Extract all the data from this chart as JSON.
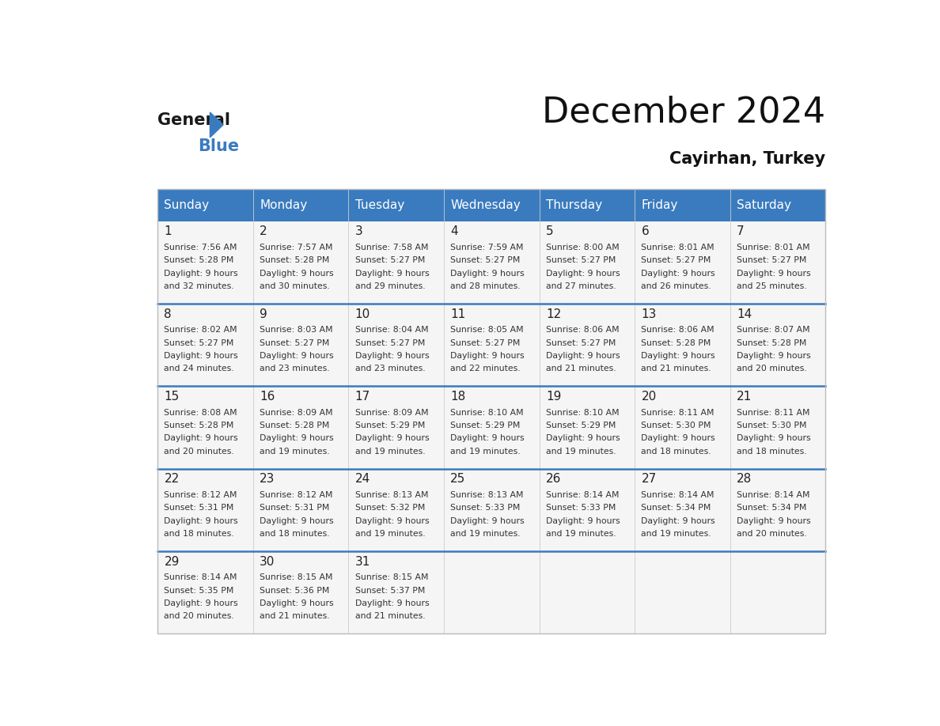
{
  "title": "December 2024",
  "subtitle": "Cayirhan, Turkey",
  "header_color": "#3a7bbf",
  "header_text_color": "#ffffff",
  "bg_color": "#ffffff",
  "cell_bg": "#f5f5f5",
  "day_headers": [
    "Sunday",
    "Monday",
    "Tuesday",
    "Wednesday",
    "Thursday",
    "Friday",
    "Saturday"
  ],
  "separator_color": "#3a7bbf",
  "days": [
    {
      "day": 1,
      "col": 0,
      "row": 0,
      "sunrise": "7:56 AM",
      "sunset": "5:28 PM",
      "daylight_hrs": 9,
      "daylight_min": 32
    },
    {
      "day": 2,
      "col": 1,
      "row": 0,
      "sunrise": "7:57 AM",
      "sunset": "5:28 PM",
      "daylight_hrs": 9,
      "daylight_min": 30
    },
    {
      "day": 3,
      "col": 2,
      "row": 0,
      "sunrise": "7:58 AM",
      "sunset": "5:27 PM",
      "daylight_hrs": 9,
      "daylight_min": 29
    },
    {
      "day": 4,
      "col": 3,
      "row": 0,
      "sunrise": "7:59 AM",
      "sunset": "5:27 PM",
      "daylight_hrs": 9,
      "daylight_min": 28
    },
    {
      "day": 5,
      "col": 4,
      "row": 0,
      "sunrise": "8:00 AM",
      "sunset": "5:27 PM",
      "daylight_hrs": 9,
      "daylight_min": 27
    },
    {
      "day": 6,
      "col": 5,
      "row": 0,
      "sunrise": "8:01 AM",
      "sunset": "5:27 PM",
      "daylight_hrs": 9,
      "daylight_min": 26
    },
    {
      "day": 7,
      "col": 6,
      "row": 0,
      "sunrise": "8:01 AM",
      "sunset": "5:27 PM",
      "daylight_hrs": 9,
      "daylight_min": 25
    },
    {
      "day": 8,
      "col": 0,
      "row": 1,
      "sunrise": "8:02 AM",
      "sunset": "5:27 PM",
      "daylight_hrs": 9,
      "daylight_min": 24
    },
    {
      "day": 9,
      "col": 1,
      "row": 1,
      "sunrise": "8:03 AM",
      "sunset": "5:27 PM",
      "daylight_hrs": 9,
      "daylight_min": 23
    },
    {
      "day": 10,
      "col": 2,
      "row": 1,
      "sunrise": "8:04 AM",
      "sunset": "5:27 PM",
      "daylight_hrs": 9,
      "daylight_min": 23
    },
    {
      "day": 11,
      "col": 3,
      "row": 1,
      "sunrise": "8:05 AM",
      "sunset": "5:27 PM",
      "daylight_hrs": 9,
      "daylight_min": 22
    },
    {
      "day": 12,
      "col": 4,
      "row": 1,
      "sunrise": "8:06 AM",
      "sunset": "5:27 PM",
      "daylight_hrs": 9,
      "daylight_min": 21
    },
    {
      "day": 13,
      "col": 5,
      "row": 1,
      "sunrise": "8:06 AM",
      "sunset": "5:28 PM",
      "daylight_hrs": 9,
      "daylight_min": 21
    },
    {
      "day": 14,
      "col": 6,
      "row": 1,
      "sunrise": "8:07 AM",
      "sunset": "5:28 PM",
      "daylight_hrs": 9,
      "daylight_min": 20
    },
    {
      "day": 15,
      "col": 0,
      "row": 2,
      "sunrise": "8:08 AM",
      "sunset": "5:28 PM",
      "daylight_hrs": 9,
      "daylight_min": 20
    },
    {
      "day": 16,
      "col": 1,
      "row": 2,
      "sunrise": "8:09 AM",
      "sunset": "5:28 PM",
      "daylight_hrs": 9,
      "daylight_min": 19
    },
    {
      "day": 17,
      "col": 2,
      "row": 2,
      "sunrise": "8:09 AM",
      "sunset": "5:29 PM",
      "daylight_hrs": 9,
      "daylight_min": 19
    },
    {
      "day": 18,
      "col": 3,
      "row": 2,
      "sunrise": "8:10 AM",
      "sunset": "5:29 PM",
      "daylight_hrs": 9,
      "daylight_min": 19
    },
    {
      "day": 19,
      "col": 4,
      "row": 2,
      "sunrise": "8:10 AM",
      "sunset": "5:29 PM",
      "daylight_hrs": 9,
      "daylight_min": 19
    },
    {
      "day": 20,
      "col": 5,
      "row": 2,
      "sunrise": "8:11 AM",
      "sunset": "5:30 PM",
      "daylight_hrs": 9,
      "daylight_min": 18
    },
    {
      "day": 21,
      "col": 6,
      "row": 2,
      "sunrise": "8:11 AM",
      "sunset": "5:30 PM",
      "daylight_hrs": 9,
      "daylight_min": 18
    },
    {
      "day": 22,
      "col": 0,
      "row": 3,
      "sunrise": "8:12 AM",
      "sunset": "5:31 PM",
      "daylight_hrs": 9,
      "daylight_min": 18
    },
    {
      "day": 23,
      "col": 1,
      "row": 3,
      "sunrise": "8:12 AM",
      "sunset": "5:31 PM",
      "daylight_hrs": 9,
      "daylight_min": 18
    },
    {
      "day": 24,
      "col": 2,
      "row": 3,
      "sunrise": "8:13 AM",
      "sunset": "5:32 PM",
      "daylight_hrs": 9,
      "daylight_min": 19
    },
    {
      "day": 25,
      "col": 3,
      "row": 3,
      "sunrise": "8:13 AM",
      "sunset": "5:33 PM",
      "daylight_hrs": 9,
      "daylight_min": 19
    },
    {
      "day": 26,
      "col": 4,
      "row": 3,
      "sunrise": "8:14 AM",
      "sunset": "5:33 PM",
      "daylight_hrs": 9,
      "daylight_min": 19
    },
    {
      "day": 27,
      "col": 5,
      "row": 3,
      "sunrise": "8:14 AM",
      "sunset": "5:34 PM",
      "daylight_hrs": 9,
      "daylight_min": 19
    },
    {
      "day": 28,
      "col": 6,
      "row": 3,
      "sunrise": "8:14 AM",
      "sunset": "5:34 PM",
      "daylight_hrs": 9,
      "daylight_min": 20
    },
    {
      "day": 29,
      "col": 0,
      "row": 4,
      "sunrise": "8:14 AM",
      "sunset": "5:35 PM",
      "daylight_hrs": 9,
      "daylight_min": 20
    },
    {
      "day": 30,
      "col": 1,
      "row": 4,
      "sunrise": "8:15 AM",
      "sunset": "5:36 PM",
      "daylight_hrs": 9,
      "daylight_min": 21
    },
    {
      "day": 31,
      "col": 2,
      "row": 4,
      "sunrise": "8:15 AM",
      "sunset": "5:37 PM",
      "daylight_hrs": 9,
      "daylight_min": 21
    }
  ],
  "num_rows": 5,
  "num_cols": 7,
  "logo_text_general": "General",
  "logo_text_blue": "Blue",
  "logo_color_general": "#1a1a1a",
  "logo_color_blue": "#3a7bbf",
  "logo_triangle_color": "#3a7bbf"
}
